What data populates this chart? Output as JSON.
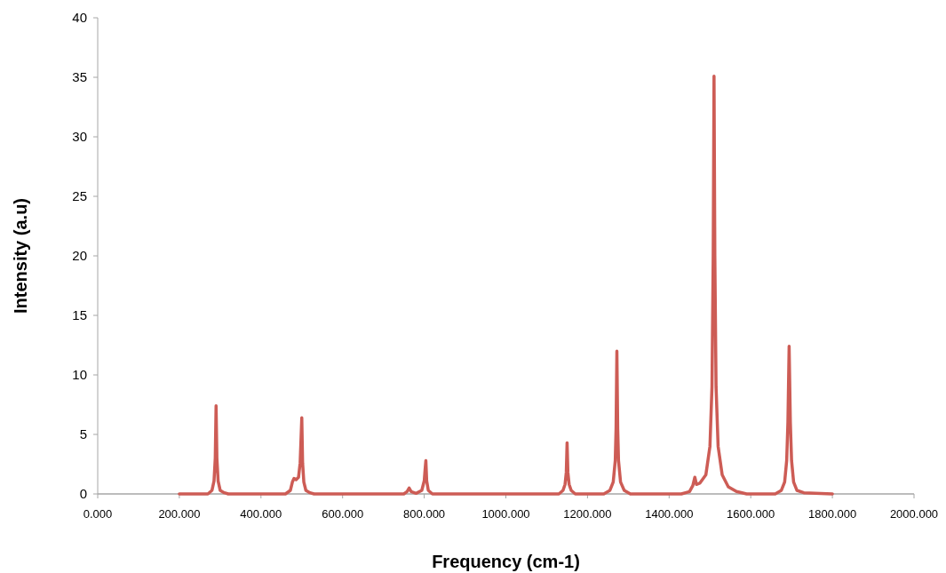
{
  "chart_data": {
    "type": "line",
    "xlabel": "Frequency (cm-1)",
    "ylabel": "Intensity (a.u)",
    "x": [
      200,
      270,
      280,
      285,
      288,
      290,
      292,
      295,
      300,
      310,
      320,
      460,
      472,
      477,
      481,
      486,
      492,
      496,
      498,
      500,
      502,
      505,
      510,
      520,
      530,
      750,
      758,
      763,
      768,
      780,
      794,
      800,
      802,
      804,
      806,
      810,
      820,
      1130,
      1140,
      1145,
      1148,
      1150,
      1152,
      1155,
      1160,
      1170,
      1240,
      1255,
      1263,
      1268,
      1270,
      1272,
      1274,
      1276,
      1281,
      1290,
      1305,
      1430,
      1450,
      1458,
      1463,
      1467,
      1475,
      1490,
      1500,
      1505,
      1508,
      1510,
      1512,
      1515,
      1520,
      1530,
      1545,
      1565,
      1590,
      1660,
      1675,
      1683,
      1688,
      1691,
      1694,
      1697,
      1700,
      1705,
      1713,
      1730,
      1800
    ],
    "series": [
      {
        "color": "#cd5c55",
        "values": [
          0,
          0,
          0.3,
          1.1,
          3.0,
          7.4,
          3.0,
          1.1,
          0.3,
          0.1,
          0,
          0,
          0.3,
          1.0,
          1.3,
          1.2,
          1.4,
          2.6,
          4.5,
          6.4,
          2.6,
          1.0,
          0.3,
          0.1,
          0,
          0,
          0.2,
          0.5,
          0.2,
          0.05,
          0.3,
          1.1,
          2.0,
          2.8,
          1.1,
          0.3,
          0,
          0,
          0.3,
          0.8,
          1.8,
          4.3,
          1.8,
          0.8,
          0.3,
          0,
          0,
          0.3,
          1.0,
          2.8,
          5.5,
          12.0,
          5.5,
          2.8,
          1.0,
          0.3,
          0,
          0,
          0.2,
          0.7,
          1.4,
          0.8,
          0.9,
          1.6,
          4.0,
          9.0,
          20,
          35.1,
          20,
          9.0,
          4.0,
          1.6,
          0.6,
          0.2,
          0,
          0,
          0.3,
          1.0,
          2.8,
          6.0,
          12.4,
          6.0,
          2.8,
          1.0,
          0.3,
          0.1,
          0
        ]
      }
    ],
    "xlim": [
      0,
      2000
    ],
    "xticks": [
      {
        "value": 0,
        "label": "0.000"
      },
      {
        "value": 200,
        "label": "200.000"
      },
      {
        "value": 400,
        "label": "400.000"
      },
      {
        "value": 600,
        "label": "600.000"
      },
      {
        "value": 800,
        "label": "800.000"
      },
      {
        "value": 1000,
        "label": "1000.000"
      },
      {
        "value": 1200,
        "label": "1200.000"
      },
      {
        "value": 1400,
        "label": "1400.000"
      },
      {
        "value": 1600,
        "label": "1600.000"
      },
      {
        "value": 1800,
        "label": "1800.000"
      },
      {
        "value": 2000,
        "label": "2000.000"
      }
    ],
    "ylim": [
      0,
      40
    ],
    "yticks": [
      0,
      5,
      10,
      15,
      20,
      25,
      30,
      35,
      40
    ],
    "marker": "none",
    "line_style": "solid"
  }
}
